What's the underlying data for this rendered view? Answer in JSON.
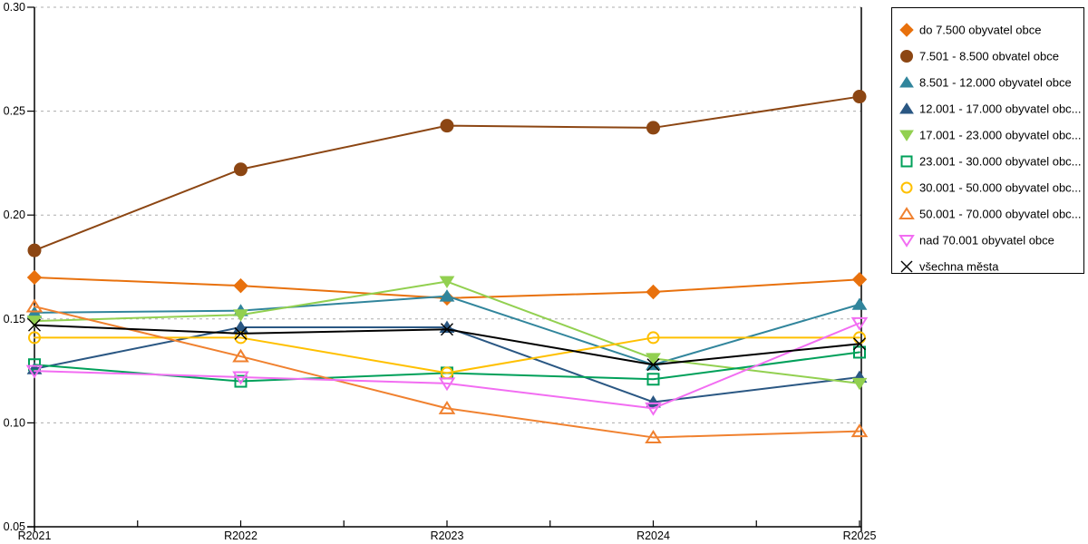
{
  "chart_data": {
    "type": "line",
    "title": "",
    "xlabel": "",
    "ylabel": "",
    "categories": [
      "R2021",
      "R2022",
      "R2023",
      "R2024",
      "R2025"
    ],
    "ylim": [
      0.05,
      0.3
    ],
    "yticks": [
      0.05,
      0.1,
      0.15,
      0.2,
      0.25,
      0.3
    ],
    "grid": "horizontal dashed",
    "legend_position": "right",
    "series": [
      {
        "label": "do 7.500 obyvatel obce",
        "color": "#E8710D",
        "marker": "diamond",
        "fill": "filled",
        "values": [
          0.17,
          0.166,
          0.16,
          0.163,
          0.169
        ]
      },
      {
        "label": "7.501 - 8.500 obvatel obce",
        "color": "#8C4613",
        "marker": "circle",
        "fill": "filled",
        "values": [
          0.183,
          0.222,
          0.243,
          0.242,
          0.257
        ]
      },
      {
        "label": "8.501 - 12.000 obyvatel obce",
        "color": "#31859C",
        "marker": "triangle-up",
        "fill": "filled",
        "values": [
          0.153,
          0.154,
          0.161,
          0.128,
          0.157
        ]
      },
      {
        "label": "12.001 - 17.000 obyvatel obc...",
        "color": "#2A5783",
        "marker": "triangle-up",
        "fill": "filled",
        "values": [
          0.126,
          0.146,
          0.146,
          0.11,
          0.122
        ]
      },
      {
        "label": "17.001 - 23.000 obyvatel obc...",
        "color": "#92D050",
        "marker": "triangle-down",
        "fill": "filled",
        "values": [
          0.149,
          0.152,
          0.168,
          0.131,
          0.119
        ]
      },
      {
        "label": "23.001 - 30.000 obyvatel obc...",
        "color": "#00A05A",
        "marker": "square",
        "fill": "hollow",
        "values": [
          0.128,
          0.12,
          0.124,
          0.121,
          0.134
        ]
      },
      {
        "label": "30.001 - 50.000 obyvatel obc...",
        "color": "#FFC000",
        "marker": "circle",
        "fill": "hollow",
        "values": [
          0.141,
          0.141,
          0.124,
          0.141,
          0.141
        ]
      },
      {
        "label": "50.001 - 70.000 obyvatel obc...",
        "color": "#F0812F",
        "marker": "triangle-up",
        "fill": "hollow",
        "values": [
          0.156,
          0.132,
          0.107,
          0.093,
          0.096
        ]
      },
      {
        "label": "nad 70.001 obyvatel obce",
        "color": "#F26DF2",
        "marker": "triangle-down",
        "fill": "hollow",
        "values": [
          0.125,
          0.122,
          0.119,
          0.107,
          0.148
        ]
      },
      {
        "label": "všechna města",
        "color": "#000000",
        "marker": "x",
        "fill": "line",
        "values": [
          0.147,
          0.143,
          0.145,
          0.128,
          0.138
        ]
      }
    ],
    "colors": {
      "axis": "#000000",
      "gridline": "#ADADAD",
      "background": "#FFFFFF",
      "legend_border": "#000000"
    }
  }
}
